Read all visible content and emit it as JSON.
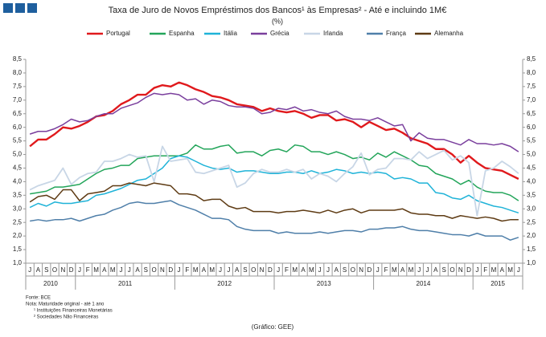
{
  "chart_data": {
    "type": "line",
    "title": "Taxa de Juro de Novos Empréstimos dos Bancos¹ às Empresas² - Até e incluindo 1M€",
    "subtitle": "(%)",
    "categories": [
      "J",
      "A",
      "S",
      "O",
      "N",
      "D",
      "J",
      "F",
      "M",
      "A",
      "M",
      "J",
      "J",
      "A",
      "S",
      "O",
      "N",
      "D",
      "J",
      "F",
      "M",
      "A",
      "M",
      "J",
      "J",
      "A",
      "S",
      "O",
      "N",
      "D",
      "J",
      "F",
      "M",
      "A",
      "M",
      "J",
      "J",
      "A",
      "S",
      "O",
      "N",
      "D",
      "J",
      "F",
      "M",
      "A",
      "M",
      "J",
      "J",
      "A",
      "S",
      "O",
      "N",
      "D",
      "J",
      "F",
      "M",
      "A",
      "M",
      "J"
    ],
    "year_labels": [
      "2010",
      "2011",
      "2012",
      "2013",
      "2014",
      "2015"
    ],
    "ylim": [
      1.0,
      8.5
    ],
    "yticks": [
      {
        "value": 1.0,
        "label": "1,0"
      },
      {
        "value": 1.5,
        "label": "1,5"
      },
      {
        "value": 2.0,
        "label": "2,0"
      },
      {
        "value": 2.5,
        "label": "2,5"
      },
      {
        "value": 3.0,
        "label": "3,0"
      },
      {
        "value": 3.5,
        "label": "3,5"
      },
      {
        "value": 4.0,
        "label": "4,0"
      },
      {
        "value": 4.5,
        "label": "4,5"
      },
      {
        "value": 5.0,
        "label": "5,0"
      },
      {
        "value": 5.5,
        "label": "5,5"
      },
      {
        "value": 6.0,
        "label": "6,0"
      },
      {
        "value": 6.5,
        "label": "6,5"
      },
      {
        "value": 7.0,
        "label": "7,0"
      },
      {
        "value": 7.5,
        "label": "7,5"
      },
      {
        "value": 8.0,
        "label": "8,0"
      },
      {
        "value": 8.5,
        "label": "8,5"
      }
    ],
    "grid": false,
    "legend": "top",
    "series": [
      {
        "name": "Portugal",
        "color": "#e0191c",
        "width": 2.4,
        "values": [
          5.3,
          5.55,
          5.55,
          5.75,
          6.0,
          5.95,
          6.05,
          6.2,
          6.4,
          6.45,
          6.6,
          6.85,
          7.0,
          7.2,
          7.2,
          7.45,
          7.55,
          7.5,
          7.65,
          7.55,
          7.4,
          7.3,
          7.15,
          7.1,
          7.0,
          6.85,
          6.8,
          6.75,
          6.6,
          6.7,
          6.6,
          6.55,
          6.6,
          6.5,
          6.35,
          6.45,
          6.45,
          6.25,
          6.3,
          6.2,
          6.0,
          6.2,
          6.05,
          5.9,
          5.95,
          5.8,
          5.6,
          5.5,
          5.4,
          5.2,
          5.2,
          5.0,
          4.7,
          4.95,
          4.7,
          4.5,
          4.45,
          4.4,
          4.25,
          4.1
        ]
      },
      {
        "name": "Espanha",
        "color": "#23a55a",
        "width": 1.5,
        "values": [
          3.55,
          3.6,
          3.65,
          3.8,
          3.8,
          3.85,
          3.9,
          4.1,
          4.3,
          4.45,
          4.5,
          4.6,
          4.6,
          4.85,
          4.9,
          4.95,
          4.95,
          4.95,
          4.95,
          5.05,
          5.35,
          5.2,
          5.2,
          5.3,
          5.35,
          5.05,
          5.1,
          5.1,
          4.95,
          5.15,
          5.2,
          5.1,
          5.35,
          5.3,
          5.1,
          5.1,
          5.0,
          5.1,
          5.0,
          4.85,
          4.9,
          4.8,
          5.05,
          4.9,
          5.1,
          4.95,
          4.8,
          4.6,
          4.55,
          4.3,
          4.2,
          4.1,
          3.9,
          4.05,
          3.8,
          3.65,
          3.6,
          3.6,
          3.5,
          3.3
        ]
      },
      {
        "name": "Itália",
        "color": "#1fb3d8",
        "width": 1.5,
        "values": [
          3.05,
          3.2,
          3.1,
          3.25,
          3.2,
          3.2,
          3.25,
          3.3,
          3.5,
          3.55,
          3.65,
          3.75,
          3.9,
          4.05,
          4.1,
          4.3,
          4.5,
          4.85,
          4.95,
          4.9,
          4.75,
          4.6,
          4.5,
          4.45,
          4.5,
          4.35,
          4.4,
          4.4,
          4.35,
          4.3,
          4.3,
          4.35,
          4.35,
          4.3,
          4.4,
          4.3,
          4.35,
          4.45,
          4.4,
          4.3,
          4.35,
          4.3,
          4.35,
          4.3,
          4.1,
          4.15,
          4.1,
          3.95,
          3.95,
          3.6,
          3.55,
          3.4,
          3.35,
          3.5,
          3.3,
          3.2,
          3.1,
          3.05,
          2.95,
          2.85
        ]
      },
      {
        "name": "Grécia",
        "color": "#7a3f9d",
        "width": 1.5,
        "values": [
          5.75,
          5.85,
          5.85,
          5.95,
          6.1,
          6.3,
          6.2,
          6.25,
          6.4,
          6.5,
          6.5,
          6.7,
          6.8,
          6.9,
          7.1,
          7.25,
          7.2,
          7.25,
          7.2,
          7.0,
          7.05,
          6.85,
          7.0,
          6.95,
          6.8,
          6.75,
          6.75,
          6.7,
          6.5,
          6.55,
          6.7,
          6.65,
          6.75,
          6.6,
          6.65,
          6.55,
          6.5,
          6.6,
          6.4,
          6.3,
          6.3,
          6.25,
          6.35,
          6.2,
          6.05,
          6.1,
          5.5,
          5.8,
          5.6,
          5.55,
          5.55,
          5.45,
          5.35,
          5.55,
          5.4,
          5.4,
          5.35,
          5.4,
          5.3,
          5.1
        ]
      },
      {
        "name": "Irlanda",
        "color": "#c8d6e6",
        "width": 1.8,
        "values": [
          3.7,
          3.85,
          3.95,
          4.05,
          4.5,
          3.9,
          4.15,
          4.3,
          4.35,
          4.75,
          4.75,
          4.85,
          5.0,
          4.9,
          4.95,
          4.0,
          5.3,
          4.75,
          4.8,
          4.85,
          4.35,
          4.3,
          4.4,
          4.5,
          4.6,
          3.8,
          3.95,
          4.3,
          4.45,
          4.35,
          4.35,
          4.45,
          4.35,
          4.45,
          4.1,
          4.3,
          4.2,
          4.0,
          4.3,
          4.55,
          5.05,
          4.25,
          4.45,
          4.5,
          4.85,
          4.85,
          4.8,
          5.1,
          4.85,
          5.0,
          5.15,
          4.8,
          4.95,
          4.7,
          2.75,
          4.4,
          4.5,
          4.75,
          4.55,
          4.3
        ]
      },
      {
        "name": "França",
        "color": "#4f7fa9",
        "width": 1.5,
        "values": [
          2.55,
          2.6,
          2.55,
          2.6,
          2.6,
          2.65,
          2.55,
          2.65,
          2.75,
          2.8,
          2.95,
          3.05,
          3.2,
          3.25,
          3.2,
          3.2,
          3.25,
          3.3,
          3.15,
          3.05,
          2.95,
          2.8,
          2.65,
          2.65,
          2.6,
          2.35,
          2.25,
          2.2,
          2.2,
          2.2,
          2.1,
          2.15,
          2.1,
          2.1,
          2.1,
          2.15,
          2.1,
          2.15,
          2.2,
          2.2,
          2.15,
          2.25,
          2.25,
          2.3,
          2.3,
          2.35,
          2.25,
          2.2,
          2.2,
          2.15,
          2.1,
          2.05,
          2.05,
          2.0,
          2.1,
          2.0,
          2.0,
          2.0,
          1.85,
          1.95
        ]
      },
      {
        "name": "Alemanha",
        "color": "#5e3b14",
        "width": 1.5,
        "values": [
          3.25,
          3.45,
          3.5,
          3.35,
          3.7,
          3.7,
          3.3,
          3.55,
          3.6,
          3.65,
          3.85,
          3.85,
          3.95,
          3.9,
          3.85,
          3.95,
          3.9,
          3.85,
          3.55,
          3.55,
          3.5,
          3.3,
          3.35,
          3.35,
          3.1,
          3.0,
          3.05,
          2.9,
          2.9,
          2.9,
          2.85,
          2.9,
          2.9,
          2.95,
          2.9,
          2.85,
          2.95,
          2.85,
          2.95,
          3.0,
          2.85,
          2.95,
          2.95,
          2.95,
          2.95,
          3.0,
          2.85,
          2.8,
          2.8,
          2.75,
          2.75,
          2.65,
          2.75,
          2.7,
          2.65,
          2.7,
          2.65,
          2.55,
          2.6,
          2.6
        ]
      }
    ],
    "notes": [
      "Fonte: BCE",
      "Nota: Maturidade original - até 1 ano",
      "¹ Instituições Financeiras Monetárias",
      "² Sociedades Não Financeiras"
    ],
    "credit": "(Gráfico: GEE)"
  }
}
